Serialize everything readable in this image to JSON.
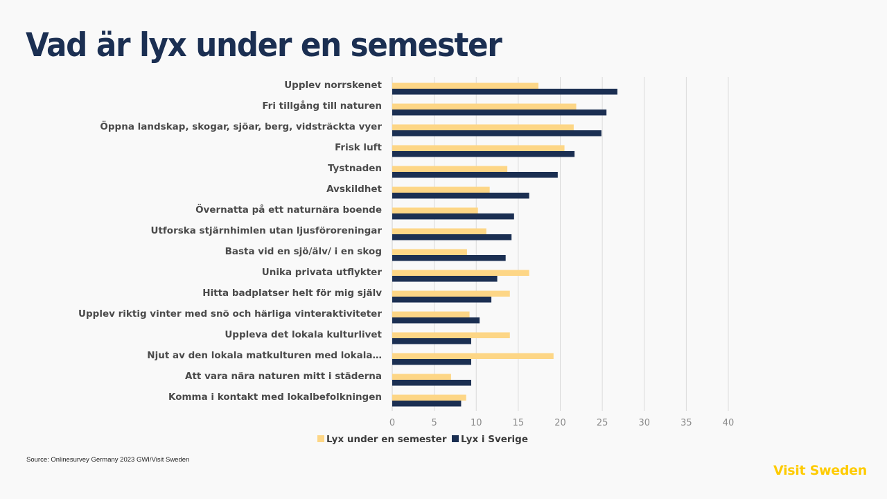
{
  "page": {
    "title": "Vad är lyx under en semester",
    "source": "Source: Onlinesurvey Germany 2023 GWI/Visit Sweden",
    "brand": "Visit Sweden",
    "colors": {
      "title": "#1b2f52",
      "brand": "#fecb00"
    }
  },
  "chart_data": {
    "type": "bar",
    "orientation": "horizontal",
    "title": "Vad är lyx under en semester",
    "xlabel": "",
    "ylabel": "",
    "xlim": [
      0,
      40
    ],
    "xticks": [
      0,
      5,
      10,
      15,
      20,
      25,
      30,
      35,
      40
    ],
    "grid": true,
    "legend_position": "bottom",
    "categories": [
      "Upplev norrskenet",
      "Fri tillgång till naturen",
      "Öppna landskap, skogar, sjöar, berg, vidsträckta vyer",
      "Frisk luft",
      "Tystnaden",
      "Avskildhet",
      "Övernatta på ett naturnära boende",
      "Utforska stjärnhimlen utan ljusföroreningar",
      "Basta vid en sjö/älv/ i en skog",
      "Unika privata utflykter",
      "Hitta badplatser helt för mig själv",
      "Upplev riktig vinter med snö och härliga vinteraktiviteter",
      "Uppleva det lokala kulturlivet",
      "Njut av den lokala matkulturen med lokala…",
      "Att vara nära naturen mitt i städerna",
      "Komma i kontakt med lokalbefolkningen"
    ],
    "series": [
      {
        "name": "Lyx under en semester",
        "color": "#fdd686",
        "values": [
          17.4,
          21.9,
          21.6,
          20.5,
          13.7,
          11.6,
          10.2,
          11.2,
          8.9,
          16.3,
          14.0,
          9.2,
          14.0,
          19.2,
          7.0,
          8.8
        ]
      },
      {
        "name": "Lyx i Sverige",
        "color": "#1b2f52",
        "values": [
          26.8,
          25.5,
          24.9,
          21.7,
          19.7,
          16.3,
          14.5,
          14.2,
          13.5,
          12.5,
          11.8,
          10.4,
          9.4,
          9.4,
          9.4,
          8.2
        ]
      }
    ]
  }
}
